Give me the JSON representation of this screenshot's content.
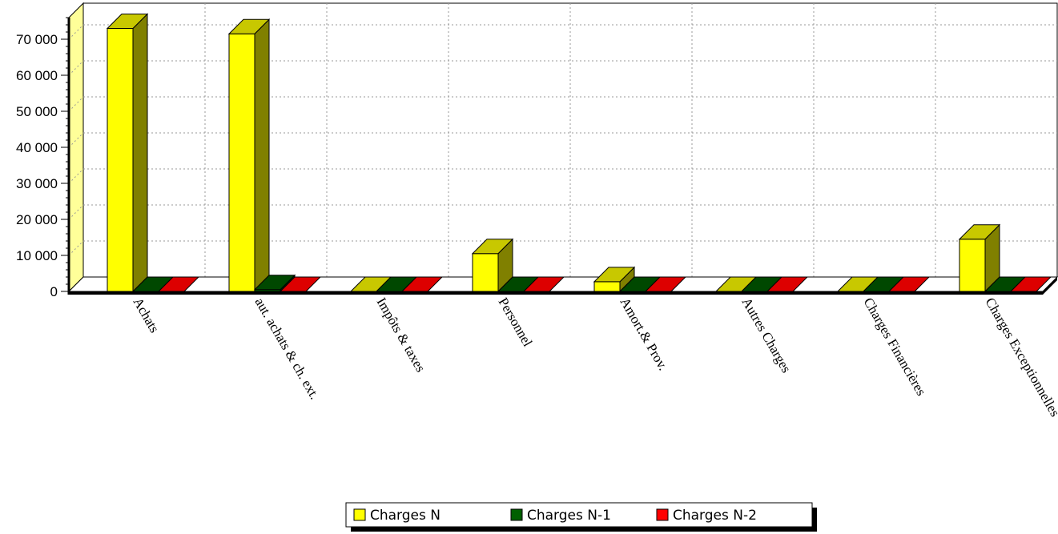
{
  "chart_data": {
    "type": "bar",
    "categories": [
      "Achats",
      "aut. achats & ch. ext.",
      "Impôts & taxes",
      "Personnel",
      "Amort.& Prov.",
      "Autres Charges",
      "Charges Financières",
      "Charges Exceptionnelles"
    ],
    "series": [
      {
        "name": "Charges  N",
        "color": "#ffff00",
        "values": [
          73000,
          71500,
          0,
          10500,
          2700,
          0,
          0,
          14500
        ]
      },
      {
        "name": "Charges  N-1",
        "color": "#006000",
        "values": [
          0,
          500,
          0,
          0,
          0,
          0,
          0,
          0
        ]
      },
      {
        "name": "Charges  N-2",
        "color": "#ff0000",
        "values": [
          0,
          0,
          0,
          0,
          0,
          0,
          0,
          0
        ]
      }
    ],
    "ylim": [
      0,
      76000
    ],
    "yticks": [
      0,
      10000,
      20000,
      30000,
      40000,
      50000,
      60000,
      70000
    ],
    "ytick_labels": [
      "0",
      "10 000",
      "20 000",
      "30 000",
      "40 000",
      "50 000",
      "60 000",
      "70 000"
    ],
    "grid": true,
    "legend_position": "bottom",
    "three_d": true
  }
}
